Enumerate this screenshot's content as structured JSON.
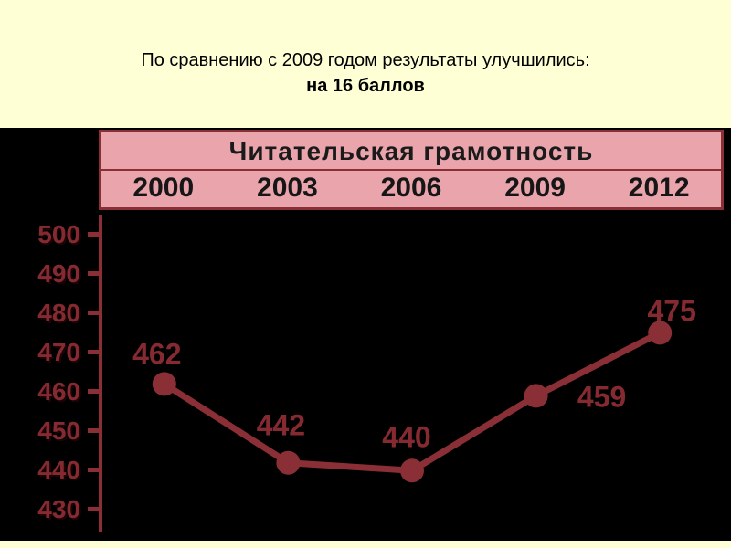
{
  "caption": {
    "line1": "По сравнению с 2009 годом результаты улучшились:",
    "line2": "на 16 баллов"
  },
  "chart_data": {
    "type": "line",
    "title": "Читательская грамотность",
    "categories": [
      "2000",
      "2003",
      "2006",
      "2009",
      "2012"
    ],
    "values": [
      462,
      442,
      440,
      459,
      475
    ],
    "yticks": [
      500,
      490,
      480,
      470,
      460,
      450,
      440,
      430
    ],
    "ylim": [
      425,
      505
    ],
    "xlabel": "",
    "ylabel": "",
    "grid": false,
    "legend_position": "none"
  },
  "colors": {
    "page_bg": "#ffffd6",
    "chart_bg": "#000000",
    "header_bg": "#e9a4ac",
    "accent_maroon": "#8b2f36",
    "label_maroon": "#852a31",
    "title_text": "#1a1a1a"
  }
}
